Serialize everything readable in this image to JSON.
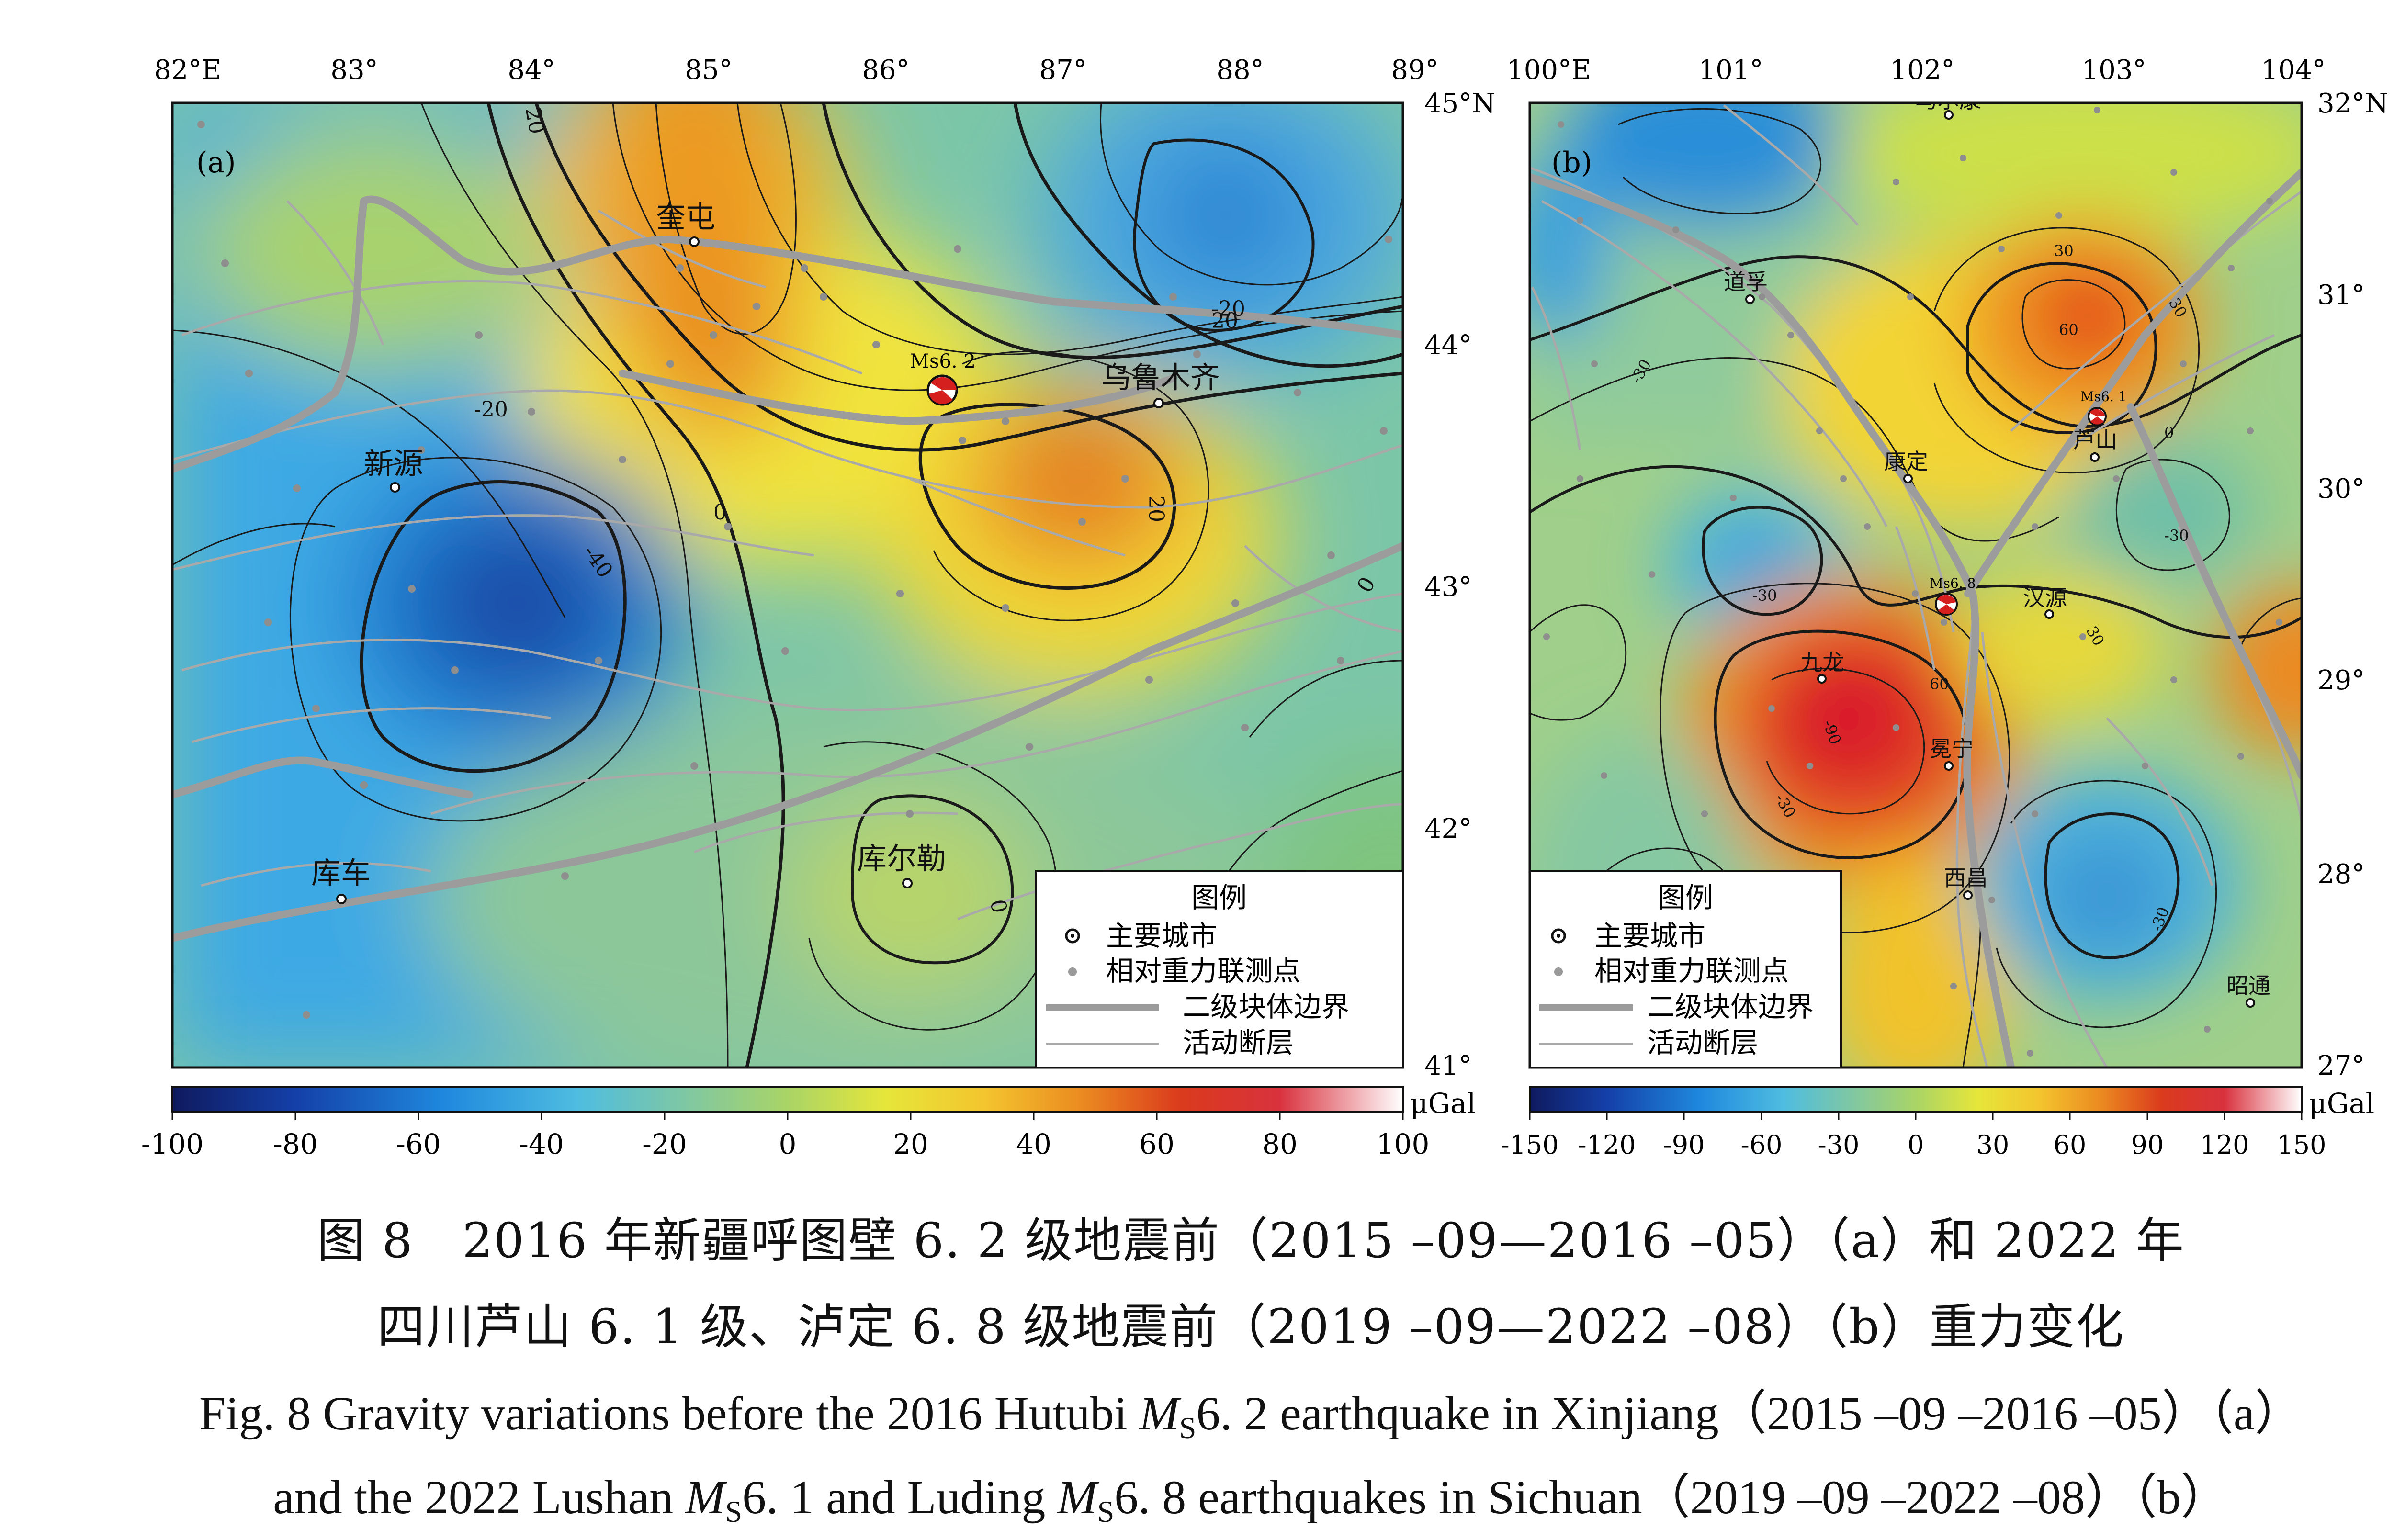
{
  "figure_label_zh": "图 8",
  "caption_zh_line1": "2016 年新疆呼图壁 6. 2 级地震前（2015 –09—2016 –05）（a）和 2022 年",
  "caption_zh_line2": "四川芦山 6. 1 级、泸定 6. 8 级地震前（2019 –09—2022 –08）（b）重力变化",
  "caption_en_line1": {
    "prefix": "Fig. 8   Gravity variations before the 2016 Hutubi ",
    "m": "M",
    "sub": "S",
    "suffix": "6. 2 earthquake in Xinjiang（2015 –09 –2016 –05）（a）"
  },
  "caption_en_line2": {
    "prefix": "and the 2022 Lushan ",
    "m1": "M",
    "sub1": "S",
    "middle": "6. 1 and Luding ",
    "m2": "M",
    "sub2": "S",
    "suffix": "6. 8 earthquakes in Sichuan（2019 –09 –2022 –08）（b）"
  },
  "map_a": {
    "panel_label": "(a)",
    "lon_ticks": [
      "82°E",
      "83°",
      "84°",
      "85°",
      "86°",
      "87°",
      "88°",
      "89°"
    ],
    "lat_ticks": [
      "45°N",
      "44°",
      "43°",
      "42°",
      "41°"
    ],
    "cities": [
      {
        "name": "奎屯"
      },
      {
        "name": "乌鲁木齐"
      },
      {
        "name": "新源"
      },
      {
        "name": "库车"
      },
      {
        "name": "库尔勒"
      }
    ],
    "earthquakes": [
      {
        "label": "Ms6. 2"
      }
    ],
    "contour_labels": [
      "20",
      "-20",
      "0",
      "-40",
      "20",
      "20",
      "0",
      "0",
      "-20"
    ],
    "legend": {
      "title": "图例",
      "items": [
        "主要城市",
        "相对重力联测点",
        "二级块体边界",
        "活动断层"
      ]
    },
    "colorbar": {
      "unit": "μGal",
      "ticks": [
        "-100",
        "-80",
        "-60",
        "-40",
        "-20",
        "0",
        "20",
        "40",
        "60",
        "80",
        "100"
      ],
      "range": [
        -100,
        100
      ]
    }
  },
  "map_b": {
    "panel_label": "(b)",
    "lon_ticks": [
      "100°E",
      "101°",
      "102°",
      "103°",
      "104°"
    ],
    "lat_ticks": [
      "32°N",
      "31°",
      "30°",
      "29°",
      "28°",
      "27°"
    ],
    "cities": [
      {
        "name": "马尔康"
      },
      {
        "name": "道孚"
      },
      {
        "name": "康定"
      },
      {
        "name": "芦山"
      },
      {
        "name": "汉源"
      },
      {
        "name": "九龙"
      },
      {
        "name": "冕宁"
      },
      {
        "name": "西昌"
      },
      {
        "name": "昭通"
      }
    ],
    "earthquakes": [
      {
        "label": "Ms6. 1"
      },
      {
        "label": "Ms6. 8"
      }
    ],
    "contour_labels": [
      "-30",
      "30",
      "60",
      "0",
      "30",
      "-30",
      "60",
      "-90",
      "30",
      "-30",
      "-30",
      "-30"
    ],
    "legend": {
      "title": "图例",
      "items": [
        "主要城市",
        "相对重力联测点",
        "二级块体边界",
        "活动断层"
      ]
    },
    "colorbar": {
      "unit": "μGal",
      "ticks": [
        "-150",
        "-120",
        "-90",
        "-60",
        "-30",
        "0",
        "30",
        "60",
        "90",
        "120",
        "150"
      ],
      "range": [
        -150,
        150
      ]
    }
  },
  "colors": {
    "scale": [
      "#0f1a5e",
      "#1555b8",
      "#1f92e0",
      "#5bc3de",
      "#8ccb8c",
      "#cfe04a",
      "#f5e933",
      "#f2b72a",
      "#e97b1c",
      "#d72320",
      "#e89aa0",
      "#ffffff"
    ],
    "fault": "#a8a8a8",
    "block_boundary": "#9c9c9c",
    "contour": "#1a1a1a"
  }
}
